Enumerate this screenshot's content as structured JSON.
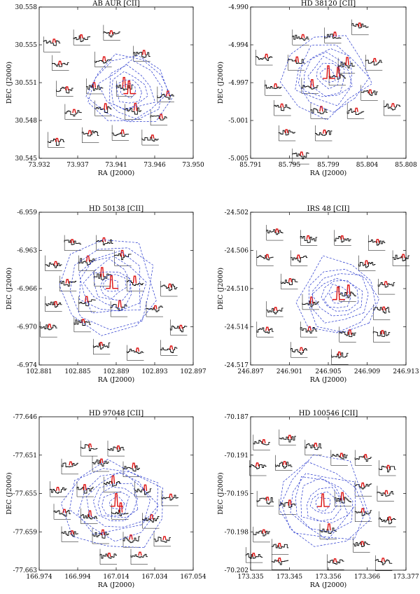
{
  "figure": {
    "description_panels": 6,
    "contour_color": "#2233cc",
    "spectrum_color": "#000000",
    "peak_color": "#dd1111"
  },
  "chart_data": [
    {
      "type": "scatter",
      "title": "AB AUR [CII]",
      "xlabel": "RA (J2000)",
      "ylabel": "DEC (J2000)",
      "x_ticks": [
        "73.932",
        "73.937",
        "73.941",
        "73.946",
        "73.950"
      ],
      "y_ticks": [
        "30.558",
        "30.555",
        "30.551",
        "30.548",
        "30.545"
      ],
      "xlim": [
        73.932,
        73.95
      ],
      "ylim": [
        30.545,
        30.558
      ],
      "center": [
        73.9425,
        30.5508
      ],
      "spectra": [
        {
          "x": 73.9335,
          "y": 30.5548
        },
        {
          "x": 73.937,
          "y": 30.5554
        },
        {
          "x": 73.9405,
          "y": 30.5558
        },
        {
          "x": 73.9345,
          "y": 30.5532
        },
        {
          "x": 73.9395,
          "y": 30.5535
        },
        {
          "x": 73.944,
          "y": 30.554
        },
        {
          "x": 73.935,
          "y": 30.551
        },
        {
          "x": 73.9385,
          "y": 30.5512
        },
        {
          "x": 73.942,
          "y": 30.551
        },
        {
          "x": 73.9468,
          "y": 30.5505
        },
        {
          "x": 73.936,
          "y": 30.549
        },
        {
          "x": 73.9395,
          "y": 30.5493
        },
        {
          "x": 73.943,
          "y": 30.549
        },
        {
          "x": 73.946,
          "y": 30.5485
        },
        {
          "x": 73.934,
          "y": 30.5466
        },
        {
          "x": 73.938,
          "y": 30.547
        },
        {
          "x": 73.9415,
          "y": 30.5472
        },
        {
          "x": 73.945,
          "y": 30.5468
        }
      ],
      "contours": 7
    },
    {
      "type": "scatter",
      "title": "HD 38120 [CII]",
      "xlabel": "RA (J2000)",
      "ylabel": "DEC (J2000)",
      "x_ticks": [
        "85.791",
        "85.795",
        "85.799",
        "85.804",
        "85.808"
      ],
      "y_ticks": [
        "-4.990",
        "-4.994",
        "-4.997",
        "-5.001",
        "-5.005"
      ],
      "xlim": [
        85.791,
        85.808
      ],
      "ylim": [
        -5.005,
        -4.99
      ],
      "center": [
        85.7995,
        -4.9968
      ],
      "spectra": [
        {
          "x": 85.7965,
          "y": -4.993
        },
        {
          "x": 85.8,
          "y": -4.9928
        },
        {
          "x": 85.803,
          "y": -4.992
        },
        {
          "x": 85.7925,
          "y": -4.995
        },
        {
          "x": 85.796,
          "y": -4.9955
        },
        {
          "x": 85.8015,
          "y": -4.9958
        },
        {
          "x": 85.8045,
          "y": -4.9955
        },
        {
          "x": 85.7935,
          "y": -4.998
        },
        {
          "x": 85.7975,
          "y": -4.9978
        },
        {
          "x": 85.8005,
          "y": -4.997
        },
        {
          "x": 85.804,
          "y": -4.9985
        },
        {
          "x": 85.7945,
          "y": -5.0
        },
        {
          "x": 85.7985,
          "y": -5.0003
        },
        {
          "x": 85.8025,
          "y": -5.0003
        },
        {
          "x": 85.8065,
          "y": -5.0
        },
        {
          "x": 85.795,
          "y": -5.0025
        },
        {
          "x": 85.799,
          "y": -5.0025
        },
        {
          "x": 85.7965,
          "y": -5.0048
        }
      ],
      "contours": 7
    },
    {
      "type": "scatter",
      "title": "HD 50138 [CII]",
      "xlabel": "RA (J2000)",
      "ylabel": "DEC (J2000)",
      "x_ticks": [
        "102.881",
        "102.885",
        "102.889",
        "102.893",
        "102.897"
      ],
      "y_ticks": [
        "-6.959",
        "-6.963",
        "-6.966",
        "-6.970",
        "-6.974"
      ],
      "xlim": [
        102.881,
        102.897
      ],
      "ylim": [
        -6.974,
        -6.959
      ],
      "center": [
        102.8885,
        -6.9662
      ],
      "spectra": [
        {
          "x": 102.8845,
          "y": -6.962
        },
        {
          "x": 102.8878,
          "y": -6.962
        },
        {
          "x": 102.8825,
          "y": -6.964
        },
        {
          "x": 102.886,
          "y": -6.964
        },
        {
          "x": 102.8897,
          "y": -6.9635
        },
        {
          "x": 102.884,
          "y": -6.966
        },
        {
          "x": 102.8876,
          "y": -6.9655
        },
        {
          "x": 102.891,
          "y": -6.966
        },
        {
          "x": 102.8945,
          "y": -6.9665
        },
        {
          "x": 102.8825,
          "y": -6.968
        },
        {
          "x": 102.886,
          "y": -6.968
        },
        {
          "x": 102.8893,
          "y": -6.9685
        },
        {
          "x": 102.893,
          "y": -6.9685
        },
        {
          "x": 102.882,
          "y": -6.9705
        },
        {
          "x": 102.8855,
          "y": -6.97
        },
        {
          "x": 102.8955,
          "y": -6.9703
        },
        {
          "x": 102.8875,
          "y": -6.9722
        },
        {
          "x": 102.891,
          "y": -6.9728
        },
        {
          "x": 102.8945,
          "y": -6.9723
        }
      ],
      "contours": 8
    },
    {
      "type": "scatter",
      "title": "IRS 48 [CII]",
      "xlabel": "RA (J2000)",
      "ylabel": "DEC (J2000)",
      "x_ticks": [
        "246.897",
        "246.901",
        "246.905",
        "246.909",
        "246.913"
      ],
      "y_ticks": [
        "-24.502",
        "-24.506",
        "-24.510",
        "-24.514",
        "-24.517"
      ],
      "xlim": [
        246.897,
        246.913
      ],
      "ylim": [
        -24.517,
        -24.502
      ],
      "center": [
        246.906,
        -24.5103
      ],
      "spectra": [
        {
          "x": 246.8995,
          "y": -24.504
        },
        {
          "x": 246.903,
          "y": -24.5045
        },
        {
          "x": 246.9065,
          "y": -24.5045
        },
        {
          "x": 246.91,
          "y": -24.505
        },
        {
          "x": 246.8985,
          "y": -24.5065
        },
        {
          "x": 246.902,
          "y": -24.5065
        },
        {
          "x": 246.909,
          "y": -24.507
        },
        {
          "x": 246.9125,
          "y": -24.5065
        },
        {
          "x": 246.901,
          "y": -24.5088
        },
        {
          "x": 246.911,
          "y": -24.5093
        },
        {
          "x": 246.8995,
          "y": -24.5115
        },
        {
          "x": 246.9032,
          "y": -24.5108
        },
        {
          "x": 246.907,
          "y": -24.51
        },
        {
          "x": 246.9105,
          "y": -24.5118
        },
        {
          "x": 246.8985,
          "y": -24.5135
        },
        {
          "x": 246.903,
          "y": -24.5135
        },
        {
          "x": 246.907,
          "y": -24.514
        },
        {
          "x": 246.9105,
          "y": -24.514
        },
        {
          "x": 246.902,
          "y": -24.5155
        },
        {
          "x": 246.9062,
          "y": -24.5162
        }
      ],
      "contours": 7
    },
    {
      "type": "scatter",
      "title": "HD 97048 [CII]",
      "xlabel": "RA (J2000)",
      "ylabel": "DEC (J2000)",
      "x_ticks": [
        "166.974",
        "166.994",
        "167.014",
        "167.034",
        "167.054"
      ],
      "y_ticks": [
        "-77.646",
        "-77.651",
        "-77.655",
        "-77.659",
        "-77.663"
      ],
      "xlim": [
        166.974,
        167.054
      ],
      "ylim": [
        -77.663,
        -77.646
      ],
      "center": [
        167.014,
        -77.6556
      ],
      "spectra": [
        {
          "x": 167.0,
          "y": -77.6495
        },
        {
          "x": 167.014,
          "y": -77.6495
        },
        {
          "x": 166.99,
          "y": -77.6515
        },
        {
          "x": 167.006,
          "y": -77.6512
        },
        {
          "x": 167.022,
          "y": -77.6518
        },
        {
          "x": 166.984,
          "y": -77.654
        },
        {
          "x": 166.998,
          "y": -77.654
        },
        {
          "x": 167.012,
          "y": -77.6535
        },
        {
          "x": 167.028,
          "y": -77.654
        },
        {
          "x": 167.042,
          "y": -77.655
        },
        {
          "x": 166.986,
          "y": -77.6565
        },
        {
          "x": 167.0,
          "y": -77.657
        },
        {
          "x": 167.016,
          "y": -77.6565
        },
        {
          "x": 167.032,
          "y": -77.6575
        },
        {
          "x": 166.99,
          "y": -77.659
        },
        {
          "x": 167.006,
          "y": -77.6592
        },
        {
          "x": 167.022,
          "y": -77.6596
        },
        {
          "x": 167.038,
          "y": -77.6595
        },
        {
          "x": 167.01,
          "y": -77.6615
        },
        {
          "x": 167.026,
          "y": -77.6615
        }
      ],
      "contours": 8
    },
    {
      "type": "scatter",
      "title": "HD 100546 [CII]",
      "xlabel": "RA (J2000)",
      "ylabel": "DEC (J2000)",
      "x_ticks": [
        "173.335",
        "173.345",
        "173.356",
        "173.366",
        "173.377"
      ],
      "y_ticks": [
        "-70.187",
        "-70.191",
        "-70.195",
        "-70.198",
        "-70.202"
      ],
      "xlim": [
        173.335,
        173.377
      ],
      "ylim": [
        -70.202,
        -70.187
      ],
      "center": [
        173.3545,
        -70.1955
      ],
      "spectra": [
        {
          "x": 173.338,
          "y": -70.1895
        },
        {
          "x": 173.345,
          "y": -70.189
        },
        {
          "x": 173.352,
          "y": -70.19
        },
        {
          "x": 173.359,
          "y": -70.191
        },
        {
          "x": 173.3655,
          "y": -70.191
        },
        {
          "x": 173.337,
          "y": -70.192
        },
        {
          "x": 173.344,
          "y": -70.1915
        },
        {
          "x": 173.372,
          "y": -70.192
        },
        {
          "x": 173.3655,
          "y": -70.194
        },
        {
          "x": 173.3715,
          "y": -70.1945
        },
        {
          "x": 173.339,
          "y": -70.195
        },
        {
          "x": 173.345,
          "y": -70.1958
        },
        {
          "x": 173.36,
          "y": -70.195
        },
        {
          "x": 173.3655,
          "y": -70.1965
        },
        {
          "x": 173.372,
          "y": -70.197
        },
        {
          "x": 173.338,
          "y": -70.1985
        },
        {
          "x": 173.356,
          "y": -70.1982
        },
        {
          "x": 173.343,
          "y": -70.1997
        },
        {
          "x": 173.336,
          "y": -70.2005
        },
        {
          "x": 173.365,
          "y": -70.1995
        },
        {
          "x": 173.343,
          "y": -70.2012
        },
        {
          "x": 173.358,
          "y": -70.2012
        },
        {
          "x": 173.371,
          "y": -70.2013
        }
      ],
      "contours": 8
    }
  ]
}
